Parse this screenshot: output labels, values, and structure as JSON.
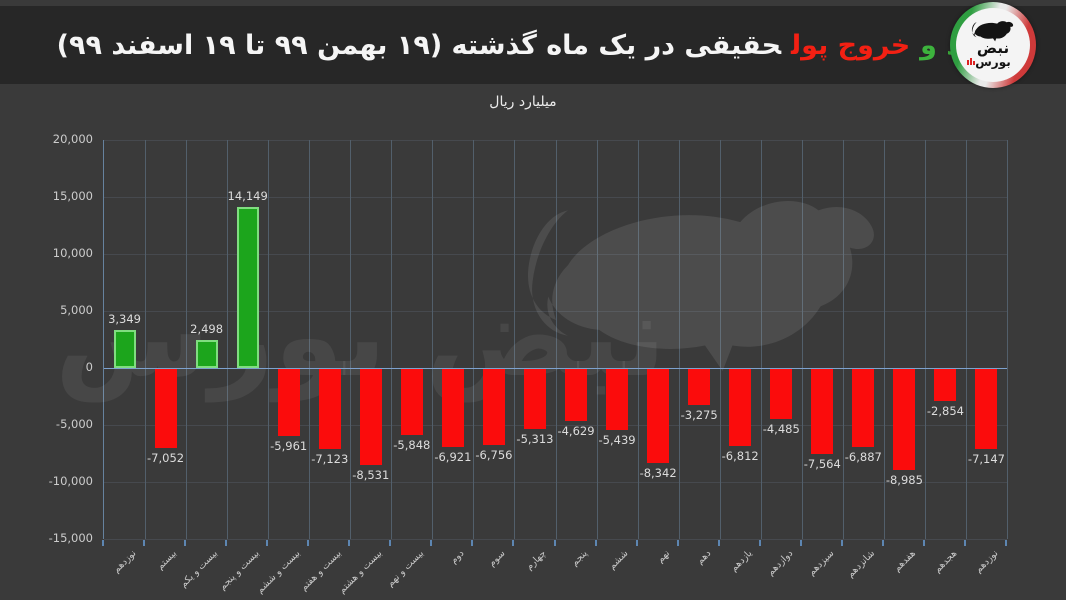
{
  "header": {
    "title_green": "ورود و",
    "title_red": "خروج پول",
    "title_rest": "حقیقی در یک ماه گذشته (۱۹ بهمن ۹۹ تا ۱۹ اسفند ۹۹)",
    "logo_line1": "نبض",
    "logo_line2": "بورس"
  },
  "chart_data": {
    "type": "bar",
    "title": "ورود و خروج پول حقیقی در یک ماه گذشته (۱۹ بهمن ۹۹ تا ۱۹ اسفند ۹۹)",
    "unit_label": "میلیارد ریال",
    "watermark": "نبض بورس",
    "categories": [
      "نوزدهم",
      "بیستم",
      "بیست و یکم",
      "بیست و پنجم",
      "بیست و ششم",
      "بیست و هفتم",
      "بیست و هشتم",
      "بیست و نهم",
      "دوم",
      "سوم",
      "چهارم",
      "پنجم",
      "ششم",
      "نهم",
      "دهم",
      "یازدهم",
      "دوازدهم",
      "سیزدهم",
      "شانزدهم",
      "هفدهم",
      "هجدهم",
      "نوزدهم"
    ],
    "values": [
      3349,
      -7052,
      2498,
      14149,
      -5961,
      -7123,
      -8531,
      -5848,
      -6921,
      -6756,
      -5313,
      -4629,
      -5439,
      -8342,
      -3275,
      -6812,
      -4485,
      -7564,
      -6887,
      -8985,
      -2854,
      -7147
    ],
    "value_labels": [
      "3,349",
      "-7,052",
      "2,498",
      "14,149",
      "-5,961",
      "-7,123",
      "-8,531",
      "-5,848",
      "-6,921",
      "-6,756",
      "-5,313",
      "-4,629",
      "-5,439",
      "-8,342",
      "-3,275",
      "-6,812",
      "-4,485",
      "-7,564",
      "-6,887",
      "-8,985",
      "-2,854",
      "-7,147"
    ],
    "ylim": [
      -15000,
      20000
    ],
    "ytick_step": 5000,
    "ytick_labels": [
      "20,000",
      "15,000",
      "10,000",
      "5,000",
      "0",
      "-5,000",
      "-10,000",
      "-15,000"
    ],
    "grid": true,
    "legend": "none",
    "positive_color": "#1ca51c",
    "positive_border": "#80dd80",
    "negative_color": "#fb0c0c"
  }
}
